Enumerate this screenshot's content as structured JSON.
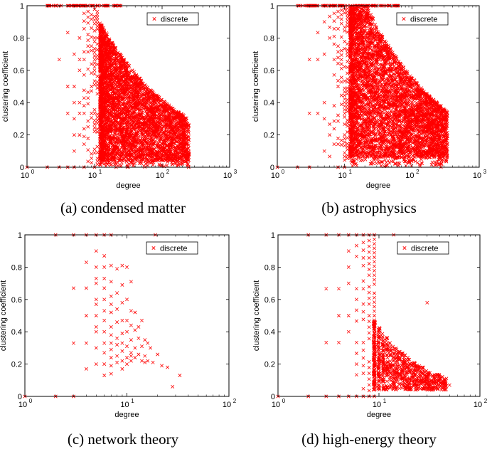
{
  "legend_label": "discrete",
  "marker_color": "#ff0000",
  "charts": [
    {
      "id": "a",
      "caption": "(a)  condensed matter",
      "chart_data": {
        "type": "scatter",
        "marker": "x",
        "xlabel": "degree",
        "ylabel": "clustering coefficient",
        "xscale": "log",
        "xlim": [
          1,
          1000
        ],
        "ylim": [
          0,
          1
        ],
        "xticks": [
          {
            "base": "10",
            "exp": "0"
          },
          {
            "base": "10",
            "exp": "1"
          },
          {
            "base": "10",
            "exp": "2"
          },
          {
            "base": "10",
            "exp": "3"
          }
        ],
        "yticks": [
          "0",
          "0.2",
          "0.4",
          "0.6",
          "0.8",
          "1"
        ],
        "legend": {
          "label": "discrete",
          "position": "top-right"
        },
        "series": [
          {
            "name": "discrete",
            "description": "dense cloud: degree 2-300; clustering decreasing with degree; vertical stacks at small integer degrees",
            "x_range": [
              2,
              300
            ],
            "y_range": [
              0,
              1
            ]
          }
        ]
      }
    },
    {
      "id": "b",
      "caption": "(b)  astrophysics",
      "chart_data": {
        "type": "scatter",
        "marker": "x",
        "xlabel": "degree",
        "ylabel": "clustering coefficient",
        "xscale": "log",
        "xlim": [
          1,
          1000
        ],
        "ylim": [
          0,
          1
        ],
        "xticks": [
          {
            "base": "10",
            "exp": "0"
          },
          {
            "base": "10",
            "exp": "1"
          },
          {
            "base": "10",
            "exp": "2"
          },
          {
            "base": "10",
            "exp": "3"
          }
        ],
        "yticks": [
          "0",
          "0.2",
          "0.4",
          "0.6",
          "0.8",
          "1"
        ],
        "legend": {
          "label": "discrete",
          "position": "top-right"
        },
        "series": [
          {
            "name": "discrete",
            "description": "very dense cloud: degree 2-360; wide spread of clustering",
            "x_range": [
              2,
              360
            ],
            "y_range": [
              0,
              1
            ]
          }
        ]
      }
    },
    {
      "id": "c",
      "caption": "(c)  network theory",
      "chart_data": {
        "type": "scatter",
        "marker": "x",
        "xlabel": "degree",
        "ylabel": "clustering coefficient",
        "xscale": "log",
        "xlim": [
          1,
          100
        ],
        "ylim": [
          0,
          1
        ],
        "xticks": [
          {
            "base": "10",
            "exp": "0"
          },
          {
            "base": "10",
            "exp": "1"
          },
          {
            "base": "10",
            "exp": "2"
          }
        ],
        "yticks": [
          "0",
          "0.2",
          "0.4",
          "0.6",
          "0.8",
          "1"
        ],
        "legend": {
          "label": "discrete",
          "position": "top-right"
        },
        "series": [
          {
            "name": "discrete",
            "points": [
              [
                1,
                0
              ],
              [
                2,
                1
              ],
              [
                2,
                0
              ],
              [
                3,
                1
              ],
              [
                3,
                0.67
              ],
              [
                3,
                0.33
              ],
              [
                3,
                0
              ],
              [
                4,
                1
              ],
              [
                4,
                0.83
              ],
              [
                4,
                0.67
              ],
              [
                4,
                0.5
              ],
              [
                4,
                0.33
              ],
              [
                4,
                0.17
              ],
              [
                4,
                0.5
              ],
              [
                5,
                1
              ],
              [
                5,
                0.9
              ],
              [
                5,
                0.8
              ],
              [
                5,
                0.7
              ],
              [
                5,
                0.6
              ],
              [
                5,
                0.5
              ],
              [
                5,
                0.4
              ],
              [
                5,
                0.3
              ],
              [
                5,
                0.2
              ],
              [
                5,
                0.73
              ],
              [
                5,
                0.57
              ],
              [
                5,
                0.43
              ],
              [
                6,
                1
              ],
              [
                6,
                0.87
              ],
              [
                6,
                0.8
              ],
              [
                6,
                0.73
              ],
              [
                6,
                0.67
              ],
              [
                6,
                0.6
              ],
              [
                6,
                0.53
              ],
              [
                6,
                0.47
              ],
              [
                6,
                0.4
              ],
              [
                6,
                0.33
              ],
              [
                6,
                0.27
              ],
              [
                6,
                0.2
              ],
              [
                6,
                0.13
              ],
              [
                7,
                1
              ],
              [
                7,
                0.81
              ],
              [
                7,
                0.71
              ],
              [
                7,
                0.62
              ],
              [
                7,
                0.52
              ],
              [
                7,
                0.43
              ],
              [
                7,
                0.38
              ],
              [
                7,
                0.33
              ],
              [
                7,
                0.29
              ],
              [
                7,
                0.24
              ],
              [
                7,
                0.19
              ],
              [
                7,
                0.14
              ],
              [
                7,
                0.57
              ],
              [
                8,
                0.79
              ],
              [
                8,
                0.64
              ],
              [
                8,
                0.54
              ],
              [
                8,
                0.46
              ],
              [
                8,
                0.36
              ],
              [
                8,
                0.32
              ],
              [
                8,
                0.25
              ],
              [
                8,
                0.21
              ],
              [
                9,
                0.81
              ],
              [
                9,
                0.69
              ],
              [
                9,
                0.58
              ],
              [
                9,
                0.47
              ],
              [
                9,
                0.39
              ],
              [
                9,
                0.33
              ],
              [
                9,
                0.28
              ],
              [
                9,
                0.22
              ],
              [
                9,
                0.17
              ],
              [
                10,
                0.8
              ],
              [
                10,
                0.6
              ],
              [
                10,
                0.47
              ],
              [
                10,
                0.4
              ],
              [
                10,
                0.31
              ],
              [
                10,
                0.24
              ],
              [
                10,
                0.2
              ],
              [
                11,
                0.71
              ],
              [
                11,
                0.53
              ],
              [
                11,
                0.44
              ],
              [
                11,
                0.35
              ],
              [
                11,
                0.27
              ],
              [
                11,
                0.25
              ],
              [
                11,
                0.22
              ],
              [
                12,
                0.52
              ],
              [
                12,
                0.41
              ],
              [
                12,
                0.3
              ],
              [
                12,
                0.24
              ],
              [
                13,
                0.43
              ],
              [
                13,
                0.36
              ],
              [
                13,
                0.26
              ],
              [
                14,
                0.47
              ],
              [
                14,
                0.31
              ],
              [
                14,
                0.22
              ],
              [
                15,
                0.35
              ],
              [
                15,
                0.25
              ],
              [
                15,
                0.21
              ],
              [
                16,
                0.33
              ],
              [
                16,
                0.22
              ],
              [
                17,
                0.3
              ],
              [
                18,
                0.21
              ],
              [
                19,
                1
              ],
              [
                20,
                0.26
              ],
              [
                28,
                0.06
              ],
              [
                22,
                0.19
              ],
              [
                25,
                0.18
              ],
              [
                33,
                0.13
              ]
            ]
          }
        ]
      }
    },
    {
      "id": "d",
      "caption": "(d)  high-energy theory",
      "chart_data": {
        "type": "scatter",
        "marker": "x",
        "xlabel": "degree",
        "ylabel": "clustering coefficient",
        "xscale": "log",
        "xlim": [
          1,
          100
        ],
        "ylim": [
          0,
          1
        ],
        "xticks": [
          {
            "base": "10",
            "exp": "0"
          },
          {
            "base": "10",
            "exp": "1"
          },
          {
            "base": "10",
            "exp": "2"
          }
        ],
        "yticks": [
          "0",
          "0.2",
          "0.4",
          "0.6",
          "0.8",
          "1"
        ],
        "legend": {
          "label": "discrete",
          "position": "top-right"
        },
        "series": [
          {
            "name": "discrete",
            "description": "degree 1-50; clustering decreasing with degree; vertical stacks at integer degrees",
            "x_range": [
              1,
              50
            ],
            "y_range": [
              0,
              1
            ]
          }
        ]
      }
    }
  ]
}
